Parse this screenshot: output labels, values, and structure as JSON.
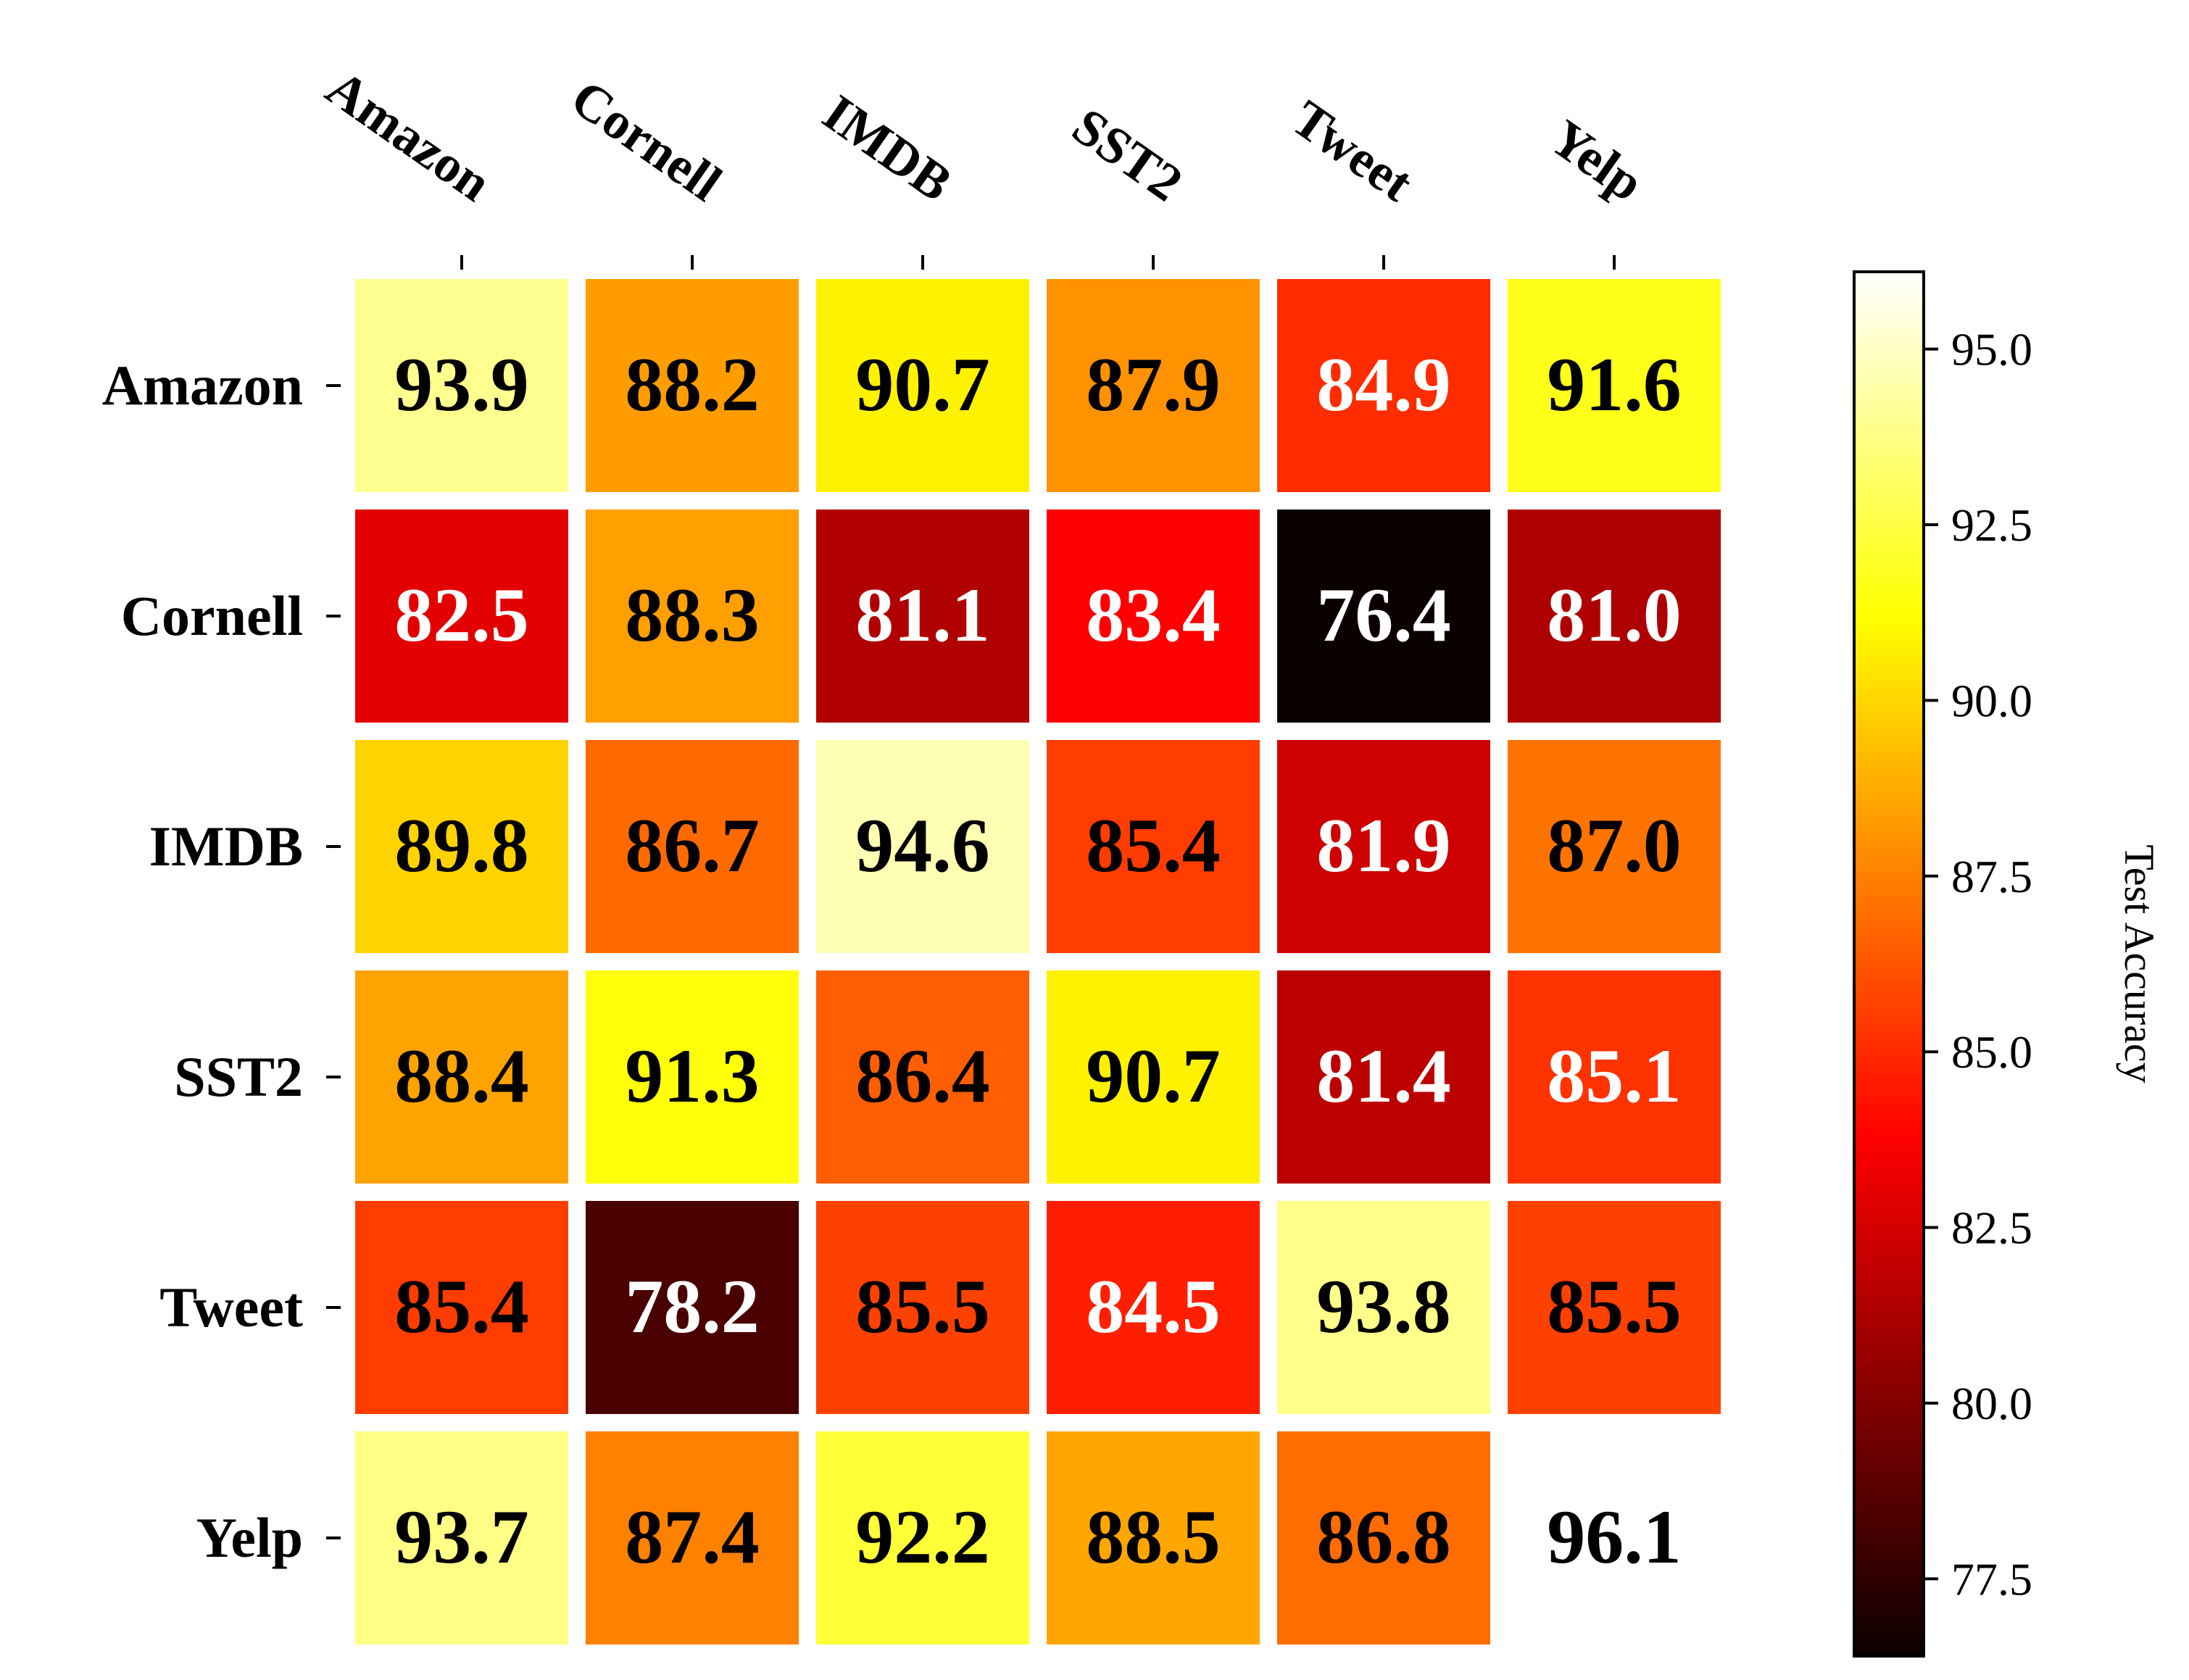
{
  "chart_data": {
    "type": "heatmap",
    "x_categories": [
      "Amazon",
      "Cornell",
      "IMDB",
      "SST2",
      "Tweet",
      "Yelp"
    ],
    "y_categories": [
      "Amazon",
      "Cornell",
      "IMDB",
      "SST2",
      "Tweet",
      "Yelp"
    ],
    "values": [
      [
        93.9,
        88.2,
        90.7,
        87.9,
        84.9,
        91.6
      ],
      [
        82.5,
        88.3,
        81.1,
        83.4,
        76.4,
        81.0
      ],
      [
        89.8,
        86.7,
        94.6,
        85.4,
        81.9,
        87.0
      ],
      [
        88.4,
        91.3,
        86.4,
        90.7,
        81.4,
        85.1
      ],
      [
        85.4,
        78.2,
        85.5,
        84.5,
        93.8,
        85.5
      ],
      [
        93.7,
        87.4,
        92.2,
        88.5,
        86.8,
        96.1
      ]
    ],
    "value_labels": [
      [
        "93.9",
        "88.2",
        "90.7",
        "87.9",
        "84.9",
        "91.6"
      ],
      [
        "82.5",
        "88.3",
        "81.1",
        "83.4",
        "76.4",
        "81.0"
      ],
      [
        "89.8",
        "86.7",
        "94.6",
        "85.4",
        "81.9",
        "87.0"
      ],
      [
        "88.4",
        "91.3",
        "86.4",
        "90.7",
        "81.4",
        "85.1"
      ],
      [
        "85.4",
        "78.2",
        "85.5",
        "84.5",
        "93.8",
        "85.5"
      ],
      [
        "93.7",
        "87.4",
        "92.2",
        "88.5",
        "86.8",
        "96.1"
      ]
    ],
    "colormap": "hot",
    "color_range": [
      76.4,
      96.1
    ],
    "colorbar": {
      "label": "Test Accuracy",
      "ticks": [
        77.5,
        80.0,
        82.5,
        85.0,
        87.5,
        90.0,
        92.5,
        95.0
      ],
      "tick_labels": [
        "77.5",
        "80.0",
        "82.5",
        "85.0",
        "87.5",
        "90.0",
        "92.5",
        "95.0"
      ],
      "placement": "right"
    }
  }
}
